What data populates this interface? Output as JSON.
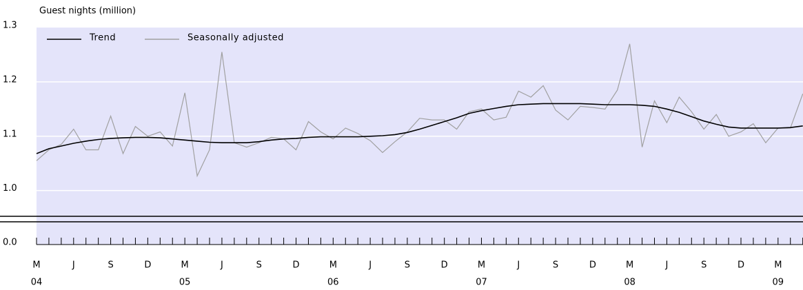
{
  "chart_data": {
    "type": "line",
    "y_label": "Guest nights (million)",
    "categories": [
      {
        "month": "M",
        "year": "04"
      },
      null,
      null,
      {
        "month": "J"
      },
      null,
      null,
      {
        "month": "S"
      },
      null,
      null,
      {
        "month": "D"
      },
      null,
      null,
      {
        "month": "M",
        "year": "05"
      },
      null,
      null,
      {
        "month": "J"
      },
      null,
      null,
      {
        "month": "S"
      },
      null,
      null,
      {
        "month": "D"
      },
      null,
      null,
      {
        "month": "M",
        "year": "06"
      },
      null,
      null,
      {
        "month": "J"
      },
      null,
      null,
      {
        "month": "S"
      },
      null,
      null,
      {
        "month": "D"
      },
      null,
      null,
      {
        "month": "M",
        "year": "07"
      },
      null,
      null,
      {
        "month": "J"
      },
      null,
      null,
      {
        "month": "S"
      },
      null,
      null,
      {
        "month": "D"
      },
      null,
      null,
      {
        "month": "M",
        "year": "08"
      },
      null,
      null,
      {
        "month": "J"
      },
      null,
      null,
      {
        "month": "S"
      },
      null,
      null,
      {
        "month": "D"
      },
      null,
      null,
      {
        "month": "M",
        "year": "09"
      },
      null,
      null
    ],
    "series": [
      {
        "name": "Trend",
        "color": "#000000",
        "values": [
          1.068,
          1.077,
          1.082,
          1.087,
          1.091,
          1.094,
          1.096,
          1.097,
          1.098,
          1.098,
          1.097,
          1.095,
          1.093,
          1.091,
          1.089,
          1.088,
          1.088,
          1.088,
          1.09,
          1.093,
          1.095,
          1.096,
          1.098,
          1.099,
          1.099,
          1.099,
          1.099,
          1.1,
          1.101,
          1.103,
          1.107,
          1.113,
          1.12,
          1.127,
          1.134,
          1.142,
          1.147,
          1.151,
          1.155,
          1.158,
          1.159,
          1.16,
          1.16,
          1.16,
          1.16,
          1.159,
          1.158,
          1.158,
          1.158,
          1.157,
          1.155,
          1.15,
          1.144,
          1.136,
          1.128,
          1.122,
          1.117,
          1.115,
          1.115,
          1.115,
          1.115,
          1.116,
          1.119
        ]
      },
      {
        "name": "Seasonally adjusted",
        "color": "#a0a0a0",
        "values": [
          1.055,
          1.075,
          1.085,
          1.113,
          1.075,
          1.075,
          1.137,
          1.068,
          1.118,
          1.1,
          1.108,
          1.082,
          1.18,
          1.027,
          1.075,
          1.255,
          1.088,
          1.08,
          1.088,
          1.098,
          1.095,
          1.075,
          1.127,
          1.108,
          1.095,
          1.115,
          1.105,
          1.092,
          1.07,
          1.09,
          1.108,
          1.133,
          1.13,
          1.13,
          1.113,
          1.145,
          1.15,
          1.13,
          1.135,
          1.183,
          1.172,
          1.193,
          1.148,
          1.13,
          1.155,
          1.153,
          1.15,
          1.185,
          1.27,
          1.08,
          1.165,
          1.125,
          1.172,
          1.145,
          1.113,
          1.14,
          1.1,
          1.108,
          1.123,
          1.088,
          1.115,
          1.115,
          1.178
        ]
      }
    ],
    "ylim": [
      0,
      1.3
    ],
    "y_break": [
      0,
      0.94
    ],
    "yticks": [
      {
        "value": 0,
        "label": "0.0"
      },
      {
        "value": 1,
        "label": "1.0"
      },
      1.1,
      1.2,
      1.3
    ],
    "grid": true,
    "background": "#e4e4fa",
    "legend": "top-left"
  }
}
